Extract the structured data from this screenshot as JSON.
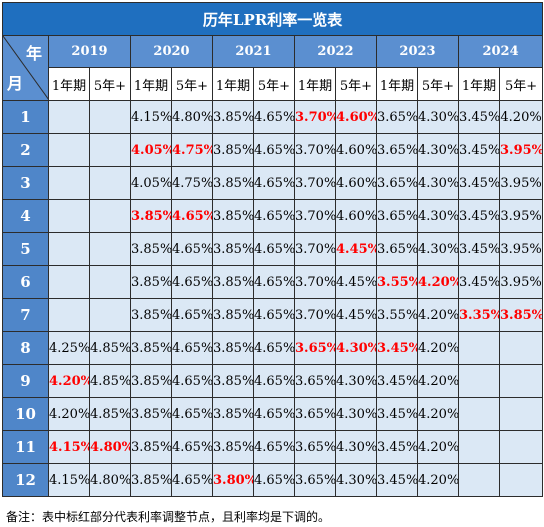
{
  "title": "历年LPR利率一览表",
  "corner": {
    "year_label": "年",
    "month_label": "月"
  },
  "years": [
    "2019",
    "2020",
    "2021",
    "2022",
    "2023",
    "2024"
  ],
  "sub_headers": [
    "1年期",
    "5年+"
  ],
  "rows": [
    {
      "month": "1",
      "cells": [
        [
          "",
          0
        ],
        [
          "",
          0
        ],
        [
          "4.15%",
          0
        ],
        [
          "4.80%",
          0
        ],
        [
          "3.85%",
          0
        ],
        [
          "4.65%",
          0
        ],
        [
          "3.70%",
          1
        ],
        [
          "4.60%",
          1
        ],
        [
          "3.65%",
          0
        ],
        [
          "4.30%",
          0
        ],
        [
          "3.45%",
          0
        ],
        [
          "4.20%",
          0
        ]
      ]
    },
    {
      "month": "2",
      "cells": [
        [
          "",
          0
        ],
        [
          "",
          0
        ],
        [
          "4.05%",
          1
        ],
        [
          "4.75%",
          1
        ],
        [
          "3.85%",
          0
        ],
        [
          "4.65%",
          0
        ],
        [
          "3.70%",
          0
        ],
        [
          "4.60%",
          0
        ],
        [
          "3.65%",
          0
        ],
        [
          "4.30%",
          0
        ],
        [
          "3.45%",
          0
        ],
        [
          "3.95%",
          1
        ]
      ]
    },
    {
      "month": "3",
      "cells": [
        [
          "",
          0
        ],
        [
          "",
          0
        ],
        [
          "4.05%",
          0
        ],
        [
          "4.75%",
          0
        ],
        [
          "3.85%",
          0
        ],
        [
          "4.65%",
          0
        ],
        [
          "3.70%",
          0
        ],
        [
          "4.60%",
          0
        ],
        [
          "3.65%",
          0
        ],
        [
          "4.30%",
          0
        ],
        [
          "3.45%",
          0
        ],
        [
          "3.95%",
          0
        ]
      ]
    },
    {
      "month": "4",
      "cells": [
        [
          "",
          0
        ],
        [
          "",
          0
        ],
        [
          "3.85%",
          1
        ],
        [
          "4.65%",
          1
        ],
        [
          "3.85%",
          0
        ],
        [
          "4.65%",
          0
        ],
        [
          "3.70%",
          0
        ],
        [
          "4.60%",
          0
        ],
        [
          "3.65%",
          0
        ],
        [
          "4.30%",
          0
        ],
        [
          "3.45%",
          0
        ],
        [
          "3.95%",
          0
        ]
      ]
    },
    {
      "month": "5",
      "cells": [
        [
          "",
          0
        ],
        [
          "",
          0
        ],
        [
          "3.85%",
          0
        ],
        [
          "4.65%",
          0
        ],
        [
          "3.85%",
          0
        ],
        [
          "4.65%",
          0
        ],
        [
          "3.70%",
          0
        ],
        [
          "4.45%",
          1
        ],
        [
          "3.65%",
          0
        ],
        [
          "4.30%",
          0
        ],
        [
          "3.45%",
          0
        ],
        [
          "3.95%",
          0
        ]
      ]
    },
    {
      "month": "6",
      "cells": [
        [
          "",
          0
        ],
        [
          "",
          0
        ],
        [
          "3.85%",
          0
        ],
        [
          "4.65%",
          0
        ],
        [
          "3.85%",
          0
        ],
        [
          "4.65%",
          0
        ],
        [
          "3.70%",
          0
        ],
        [
          "4.45%",
          0
        ],
        [
          "3.55%",
          1
        ],
        [
          "4.20%",
          1
        ],
        [
          "3.45%",
          0
        ],
        [
          "3.95%",
          0
        ]
      ]
    },
    {
      "month": "7",
      "cells": [
        [
          "",
          0
        ],
        [
          "",
          0
        ],
        [
          "3.85%",
          0
        ],
        [
          "4.65%",
          0
        ],
        [
          "3.85%",
          0
        ],
        [
          "4.65%",
          0
        ],
        [
          "3.70%",
          0
        ],
        [
          "4.45%",
          0
        ],
        [
          "3.55%",
          0
        ],
        [
          "4.20%",
          0
        ],
        [
          "3.35%",
          1
        ],
        [
          "3.85%",
          1
        ]
      ]
    },
    {
      "month": "8",
      "cells": [
        [
          "4.25%",
          0
        ],
        [
          "4.85%",
          0
        ],
        [
          "3.85%",
          0
        ],
        [
          "4.65%",
          0
        ],
        [
          "3.85%",
          0
        ],
        [
          "4.65%",
          0
        ],
        [
          "3.65%",
          1
        ],
        [
          "4.30%",
          1
        ],
        [
          "3.45%",
          1
        ],
        [
          "4.20%",
          0
        ],
        [
          "",
          0
        ],
        [
          "",
          0
        ]
      ]
    },
    {
      "month": "9",
      "cells": [
        [
          "4.20%",
          1
        ],
        [
          "4.85%",
          0
        ],
        [
          "3.85%",
          0
        ],
        [
          "4.65%",
          0
        ],
        [
          "3.85%",
          0
        ],
        [
          "4.65%",
          0
        ],
        [
          "3.65%",
          0
        ],
        [
          "4.30%",
          0
        ],
        [
          "3.45%",
          0
        ],
        [
          "4.20%",
          0
        ],
        [
          "",
          0
        ],
        [
          "",
          0
        ]
      ]
    },
    {
      "month": "10",
      "cells": [
        [
          "4.20%",
          0
        ],
        [
          "4.85%",
          0
        ],
        [
          "3.85%",
          0
        ],
        [
          "4.65%",
          0
        ],
        [
          "3.85%",
          0
        ],
        [
          "4.65%",
          0
        ],
        [
          "3.65%",
          0
        ],
        [
          "4.30%",
          0
        ],
        [
          "3.45%",
          0
        ],
        [
          "4.20%",
          0
        ],
        [
          "",
          0
        ],
        [
          "",
          0
        ]
      ]
    },
    {
      "month": "11",
      "cells": [
        [
          "4.15%",
          1
        ],
        [
          "4.80%",
          1
        ],
        [
          "3.85%",
          0
        ],
        [
          "4.65%",
          0
        ],
        [
          "3.85%",
          0
        ],
        [
          "4.65%",
          0
        ],
        [
          "3.65%",
          0
        ],
        [
          "4.30%",
          0
        ],
        [
          "3.45%",
          0
        ],
        [
          "4.20%",
          0
        ],
        [
          "",
          0
        ],
        [
          "",
          0
        ]
      ]
    },
    {
      "month": "12",
      "cells": [
        [
          "4.15%",
          0
        ],
        [
          "4.80%",
          0
        ],
        [
          "3.85%",
          0
        ],
        [
          "4.65%",
          0
        ],
        [
          "3.80%",
          1
        ],
        [
          "4.65%",
          0
        ],
        [
          "3.65%",
          0
        ],
        [
          "4.30%",
          0
        ],
        [
          "3.45%",
          0
        ],
        [
          "4.20%",
          0
        ],
        [
          "",
          0
        ],
        [
          "",
          0
        ]
      ]
    }
  ],
  "note": "备注：表中标红部分代表利率调整节点，且利率均是下调的。",
  "colors": {
    "title_bg": "#1f6fbf",
    "header_bg": "#5b8fd0",
    "month_bg": "#4f86c9",
    "cell_bg": "#dbe8f5",
    "subheader_bg": "#ffffff",
    "highlight_text": "#ff0000",
    "grid": "#2c2c2c"
  }
}
